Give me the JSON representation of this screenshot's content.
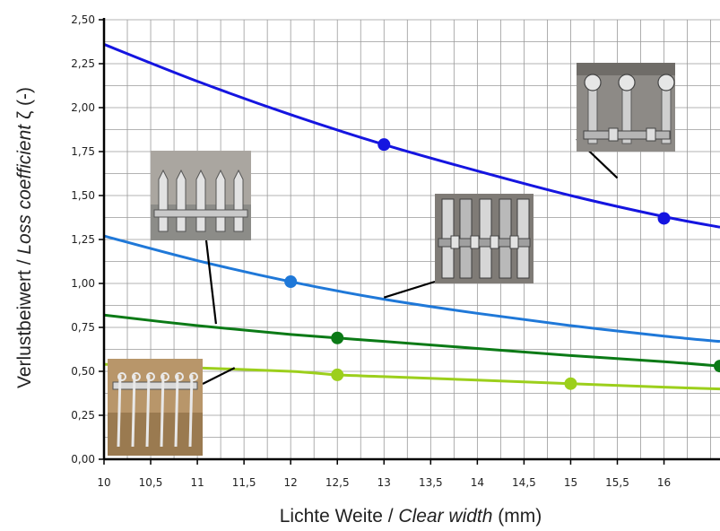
{
  "chart_data": {
    "type": "line",
    "title": "",
    "xlabel": {
      "main": "Lichte Weite / ",
      "italic": "Clear width",
      "unit": " (mm)"
    },
    "ylabel": {
      "main": "Verlustbeiwert / ",
      "italic": "Loss coefficient",
      "unit": " ζ (-)"
    },
    "xlim": [
      10,
      16.6
    ],
    "ylim": [
      0,
      2.5
    ],
    "grid": true,
    "x_ticks": [
      10,
      10.5,
      11,
      11.5,
      12,
      12.5,
      13,
      13.5,
      14,
      14.5,
      15,
      15.5,
      16
    ],
    "x_tick_labels": [
      "10",
      "10,5",
      "11",
      "11,5",
      "12",
      "12,5",
      "13",
      "13,5",
      "14",
      "14,5",
      "15",
      "15,5",
      "16"
    ],
    "y_ticks": [
      0,
      0.25,
      0.5,
      0.75,
      1.0,
      1.25,
      1.5,
      1.75,
      2.0,
      2.25,
      2.5
    ],
    "y_tick_labels": [
      "0,00",
      "0,25",
      "0,50",
      "0,75",
      "1,00",
      "1,25",
      "1,50",
      "1,75",
      "2,00",
      "2,25",
      "2,50"
    ],
    "series": [
      {
        "color": "#1515e0",
        "x": [
          10,
          11,
          12,
          13,
          14,
          15,
          16,
          16.6
        ],
        "y": [
          2.36,
          2.15,
          1.96,
          1.79,
          1.64,
          1.5,
          1.38,
          1.32
        ],
        "markers": [
          {
            "x": 13,
            "y": 1.79
          },
          {
            "x": 16,
            "y": 1.37
          }
        ]
      },
      {
        "color": "#1f78d8",
        "x": [
          10,
          11,
          12,
          13,
          14,
          15,
          16,
          16.6
        ],
        "y": [
          1.27,
          1.13,
          1.01,
          0.91,
          0.83,
          0.76,
          0.7,
          0.67
        ],
        "markers": [
          {
            "x": 12,
            "y": 1.01
          }
        ]
      },
      {
        "color": "#0b7a16",
        "x": [
          10,
          11,
          12,
          13,
          14,
          15,
          16,
          16.6
        ],
        "y": [
          0.82,
          0.76,
          0.71,
          0.67,
          0.63,
          0.59,
          0.555,
          0.53
        ],
        "markers": [
          {
            "x": 12.5,
            "y": 0.69
          },
          {
            "x": 16.6,
            "y": 0.53
          }
        ]
      },
      {
        "color": "#9ccf1c",
        "x": [
          10,
          11,
          12,
          12.5,
          13,
          14,
          15,
          16,
          16.6
        ],
        "y": [
          0.54,
          0.52,
          0.5,
          0.48,
          0.47,
          0.45,
          0.43,
          0.41,
          0.4
        ],
        "markers": [
          {
            "x": 12.5,
            "y": 0.48
          },
          {
            "x": 15,
            "y": 0.43
          }
        ]
      }
    ]
  },
  "photos": [
    {
      "id": "photo-rake-rounded-bars",
      "kind": "rounded-bars",
      "leader_to": {
        "x": 15.5,
        "y": 1.6
      }
    },
    {
      "id": "photo-rake-rect-bars",
      "kind": "rect-bars",
      "leader_to": {
        "x": 13,
        "y": 0.92
      }
    },
    {
      "id": "photo-rake-pointed-bars",
      "kind": "pointed-bars",
      "leader_to": {
        "x": 11.2,
        "y": 0.77
      }
    },
    {
      "id": "photo-rake-thin-bars",
      "kind": "thin-bars",
      "leader_to": {
        "x": 11.4,
        "y": 0.52
      }
    }
  ]
}
